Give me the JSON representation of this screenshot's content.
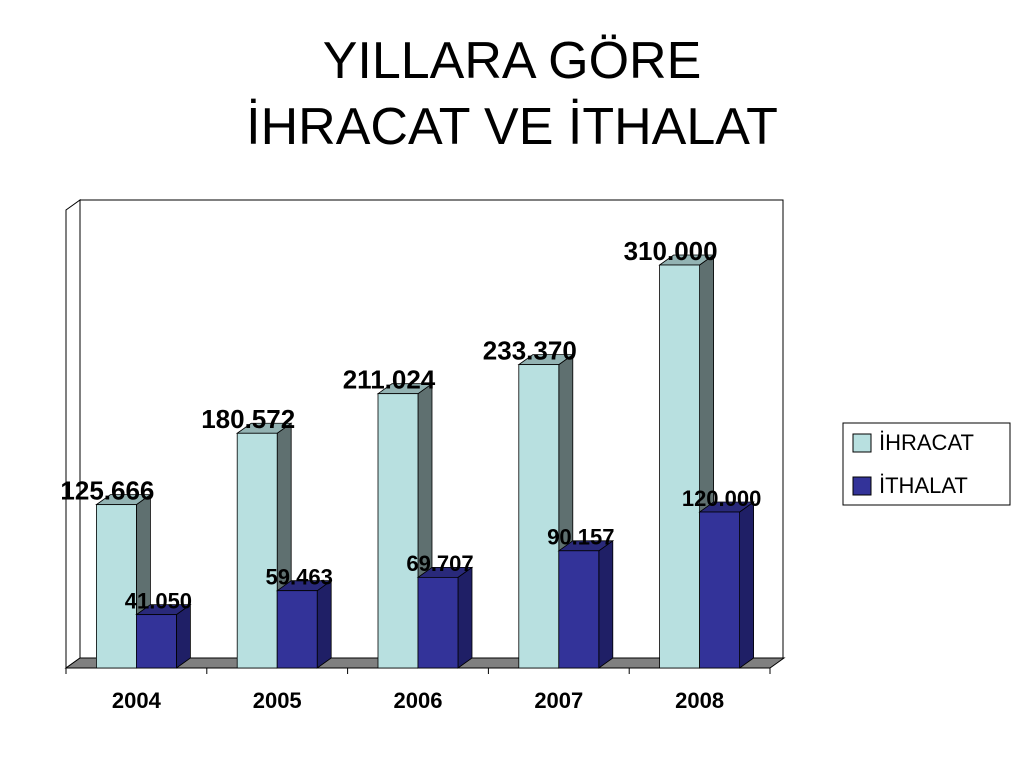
{
  "chart_data": {
    "type": "bar3d",
    "title": "YILLARA GÖRE\nİHRACAT VE İTHALAT",
    "categories": [
      "2004",
      "2005",
      "2006",
      "2007",
      "2008"
    ],
    "series": [
      {
        "name": "İHRACAT",
        "color": "#b8e0e0",
        "values": [
          125666,
          180572,
          211024,
          233370,
          310000
        ],
        "value_labels": [
          "125.666",
          "180.572",
          "211.024",
          "233.370",
          "310.000"
        ]
      },
      {
        "name": "İTHALAT",
        "color": "#333399",
        "values": [
          41050,
          59463,
          69707,
          90157,
          120000
        ],
        "value_labels": [
          "41.050",
          "59.463",
          "69.707",
          "90.157",
          "120.000"
        ]
      }
    ],
    "ylim": [
      0,
      350000
    ],
    "legend": "right"
  }
}
